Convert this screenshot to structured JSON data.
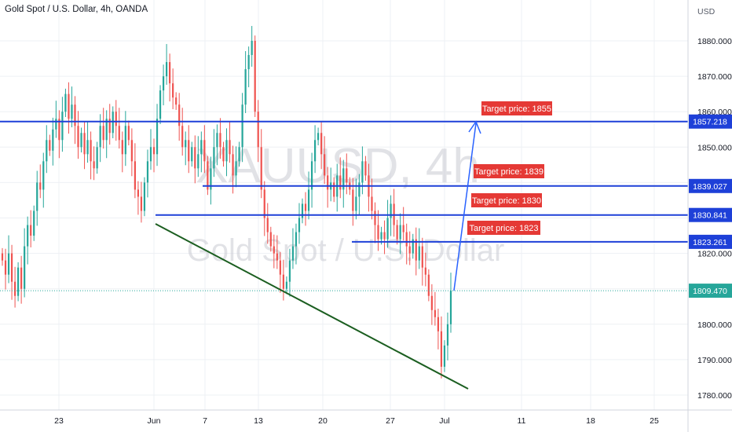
{
  "chart_data": {
    "type": "candlestick",
    "title": "Gold Spot / U.S. Dollar, 4h, OANDA",
    "watermark": {
      "symbol": "XAUUSD, 4h",
      "description": "Gold Spot / U.S. Dollar"
    },
    "currency": "USD",
    "y_axis": {
      "range": [
        1776,
        1890
      ],
      "ticks": [
        "1780.000",
        "1790.000",
        "1800.000",
        "1810.000",
        "1820.000",
        "1830.000",
        "1840.000",
        "1850.000",
        "1860.000",
        "1870.000",
        "1880.000"
      ]
    },
    "x_axis": {
      "ticks": [
        "23",
        "Jun",
        "7",
        "13",
        "20",
        "27",
        "Jul",
        "11",
        "18",
        "25"
      ]
    },
    "colors": {
      "up": "#26a69a",
      "down": "#ef5350",
      "level": "#1e40d8",
      "trendline": "#1b5e20",
      "label": "#e53935",
      "last_price": "#26a69a",
      "arrow": "#2962ff"
    },
    "price_levels": [
      {
        "price": 1857.218,
        "label": "1857.218"
      },
      {
        "price": 1839.027,
        "label": "1839.027"
      },
      {
        "price": 1830.841,
        "label": "1830.841"
      },
      {
        "price": 1823.261,
        "label": "1823.261"
      }
    ],
    "last_price": {
      "price": 1809.47,
      "label": "1809.470"
    },
    "targets": [
      "Target price: 1855",
      "Target price: 1839",
      "Target price: 1830",
      "Target price: 1823"
    ],
    "closes": [
      1818,
      1814,
      1820,
      1812,
      1808,
      1816,
      1810,
      1822,
      1828,
      1825,
      1832,
      1840,
      1838,
      1846,
      1852,
      1849,
      1855,
      1858,
      1852,
      1860,
      1865,
      1858,
      1862,
      1856,
      1850,
      1854,
      1848,
      1852,
      1846,
      1844,
      1850,
      1856,
      1852,
      1858,
      1854,
      1860,
      1856,
      1852,
      1848,
      1856,
      1852,
      1846,
      1838,
      1836,
      1832,
      1840,
      1846,
      1850,
      1848,
      1858,
      1866,
      1870,
      1874,
      1868,
      1864,
      1862,
      1856,
      1850,
      1852,
      1846,
      1850,
      1844,
      1848,
      1852,
      1846,
      1838,
      1844,
      1850,
      1854,
      1850,
      1846,
      1852,
      1848,
      1842,
      1846,
      1850,
      1862,
      1872,
      1876,
      1880,
      1860,
      1850,
      1838,
      1830,
      1826,
      1822,
      1820,
      1818,
      1814,
      1810,
      1812,
      1818,
      1822,
      1826,
      1830,
      1834,
      1832,
      1838,
      1846,
      1852,
      1854,
      1848,
      1842,
      1838,
      1840,
      1836,
      1842,
      1838,
      1844,
      1840,
      1838,
      1832,
      1836,
      1840,
      1846,
      1842,
      1836,
      1832,
      1828,
      1824,
      1826,
      1824,
      1830,
      1834,
      1828,
      1824,
      1828,
      1826,
      1822,
      1820,
      1824,
      1818,
      1822,
      1816,
      1814,
      1808,
      1804,
      1802,
      1798,
      1788,
      1794,
      1800,
      1809.47
    ]
  }
}
